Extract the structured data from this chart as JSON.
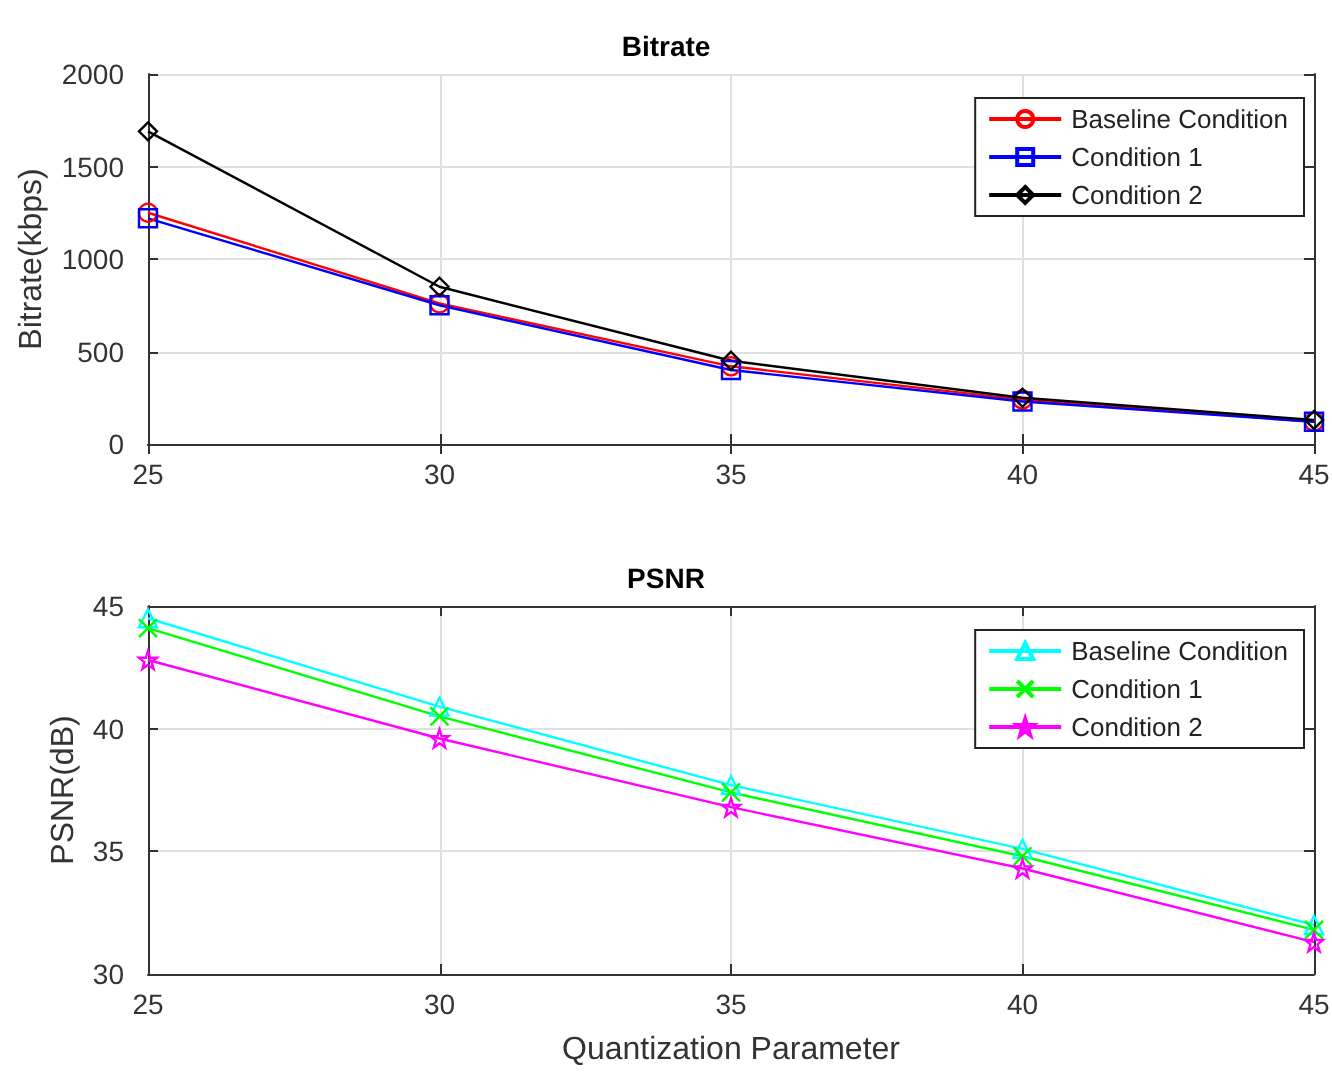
{
  "chart_data": [
    {
      "type": "line",
      "title": "Bitrate",
      "ylabel": "Bitrate(kbps)",
      "x": [
        25,
        30,
        35,
        40,
        45
      ],
      "xlim": [
        25,
        45
      ],
      "xticks": [
        25,
        30,
        35,
        40,
        45
      ],
      "ylim": [
        0,
        2000
      ],
      "yticks": [
        0,
        500,
        1000,
        1500,
        2000
      ],
      "grid": true,
      "legend": "top right",
      "series": [
        {
          "name": "Baseline Condition",
          "color": "#ff0000",
          "marker": "circle",
          "values": [
            1250,
            760,
            420,
            240,
            120
          ]
        },
        {
          "name": "Condition 1",
          "color": "#0000ff",
          "marker": "square",
          "values": [
            1220,
            750,
            400,
            230,
            120
          ]
        },
        {
          "name": "Condition 2",
          "color": "#000000",
          "marker": "diamond",
          "values": [
            1690,
            850,
            450,
            250,
            130
          ]
        }
      ]
    },
    {
      "type": "line",
      "title": "PSNR",
      "xlabel": "Quantization Parameter",
      "ylabel": "PSNR(dB)",
      "x": [
        25,
        30,
        35,
        40,
        45
      ],
      "xlim": [
        25,
        45
      ],
      "xticks": [
        25,
        30,
        35,
        40,
        45
      ],
      "ylim": [
        30,
        45
      ],
      "yticks": [
        30,
        35,
        40,
        45
      ],
      "grid": true,
      "legend": "top right",
      "series": [
        {
          "name": "Baseline Condition",
          "color": "#00ffff",
          "marker": "triangle",
          "values": [
            44.5,
            40.9,
            37.7,
            35.1,
            32.0
          ]
        },
        {
          "name": "Condition 1",
          "color": "#00ff00",
          "marker": "cross",
          "values": [
            44.1,
            40.5,
            37.4,
            34.8,
            31.8
          ]
        },
        {
          "name": "Condition 2",
          "color": "#ff00ff",
          "marker": "star",
          "values": [
            42.8,
            39.6,
            36.8,
            34.3,
            31.3
          ]
        }
      ]
    }
  ]
}
